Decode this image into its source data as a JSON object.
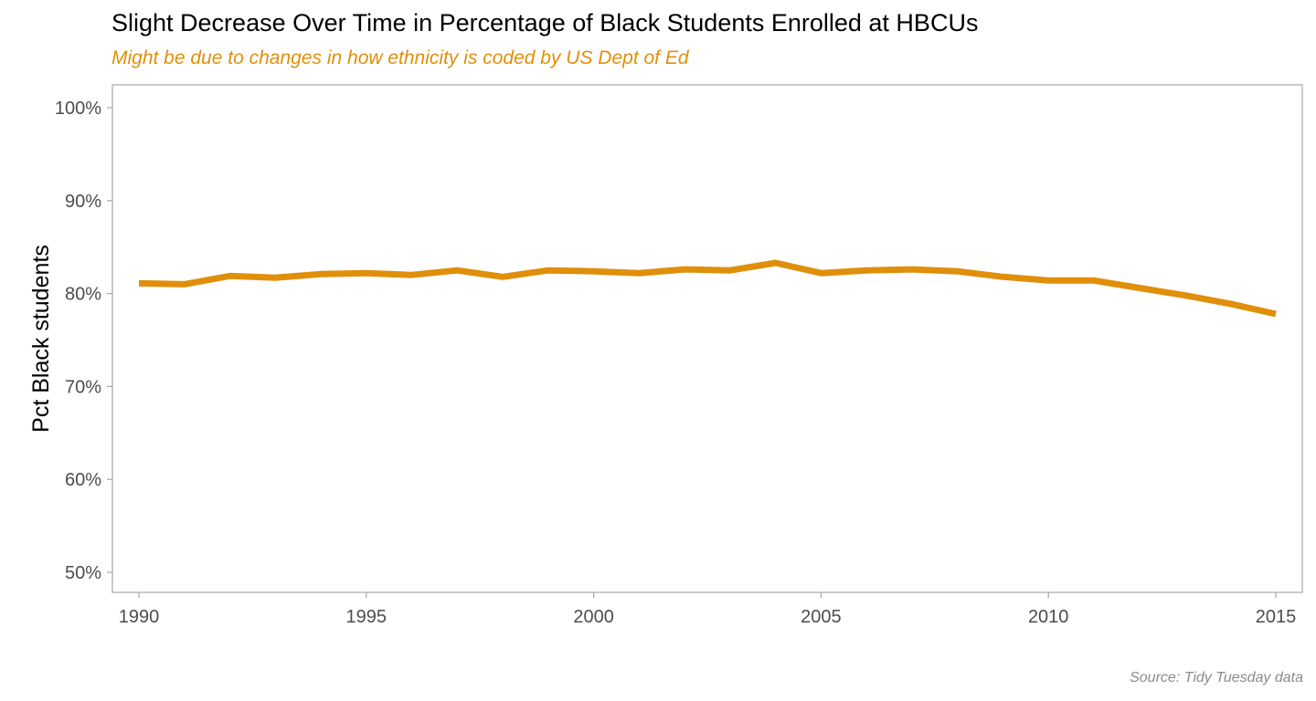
{
  "colors": {
    "line": "#E08F0B",
    "subtitle": "#E08F0B",
    "panel_border": "#a6a6a6",
    "tick_text": "#4d4d4d",
    "caption": "#8a8a8a"
  },
  "chart_data": {
    "type": "line",
    "title": "Slight Decrease Over Time in Percentage of Black Students Enrolled at HBCUs",
    "subtitle": "Might be due to changes in how ethnicity is coded by US Dept of Ed",
    "caption": "Source: Tidy Tuesday data",
    "xlabel": "",
    "ylabel": "Pct Black students",
    "xlim": [
      1990,
      2015
    ],
    "ylim": [
      0.5,
      1.0
    ],
    "x_ticks": [
      1990,
      1995,
      2000,
      2005,
      2010,
      2015
    ],
    "x_tick_labels": [
      "1990",
      "1995",
      "2000",
      "2005",
      "2010",
      "2015"
    ],
    "y_ticks": [
      0.5,
      0.6,
      0.7,
      0.8,
      0.9,
      1.0
    ],
    "y_tick_labels": [
      "50%",
      "60%",
      "70%",
      "80%",
      "90%",
      "100%"
    ],
    "grid": false,
    "legend": "none",
    "series": [
      {
        "x": [
          1990,
          1991,
          1992,
          1993,
          1994,
          1995,
          1996,
          1997,
          1998,
          1999,
          2000,
          2001,
          2002,
          2003,
          2004,
          2005,
          2006,
          2007,
          2008,
          2009,
          2010,
          2011,
          2012,
          2013,
          2014,
          2015
        ],
        "values": [
          0.811,
          0.81,
          0.819,
          0.817,
          0.821,
          0.822,
          0.82,
          0.825,
          0.818,
          0.825,
          0.824,
          0.822,
          0.826,
          0.825,
          0.833,
          0.822,
          0.825,
          0.826,
          0.824,
          0.818,
          0.814,
          0.814,
          0.806,
          0.798,
          0.789,
          0.778
        ]
      }
    ]
  }
}
